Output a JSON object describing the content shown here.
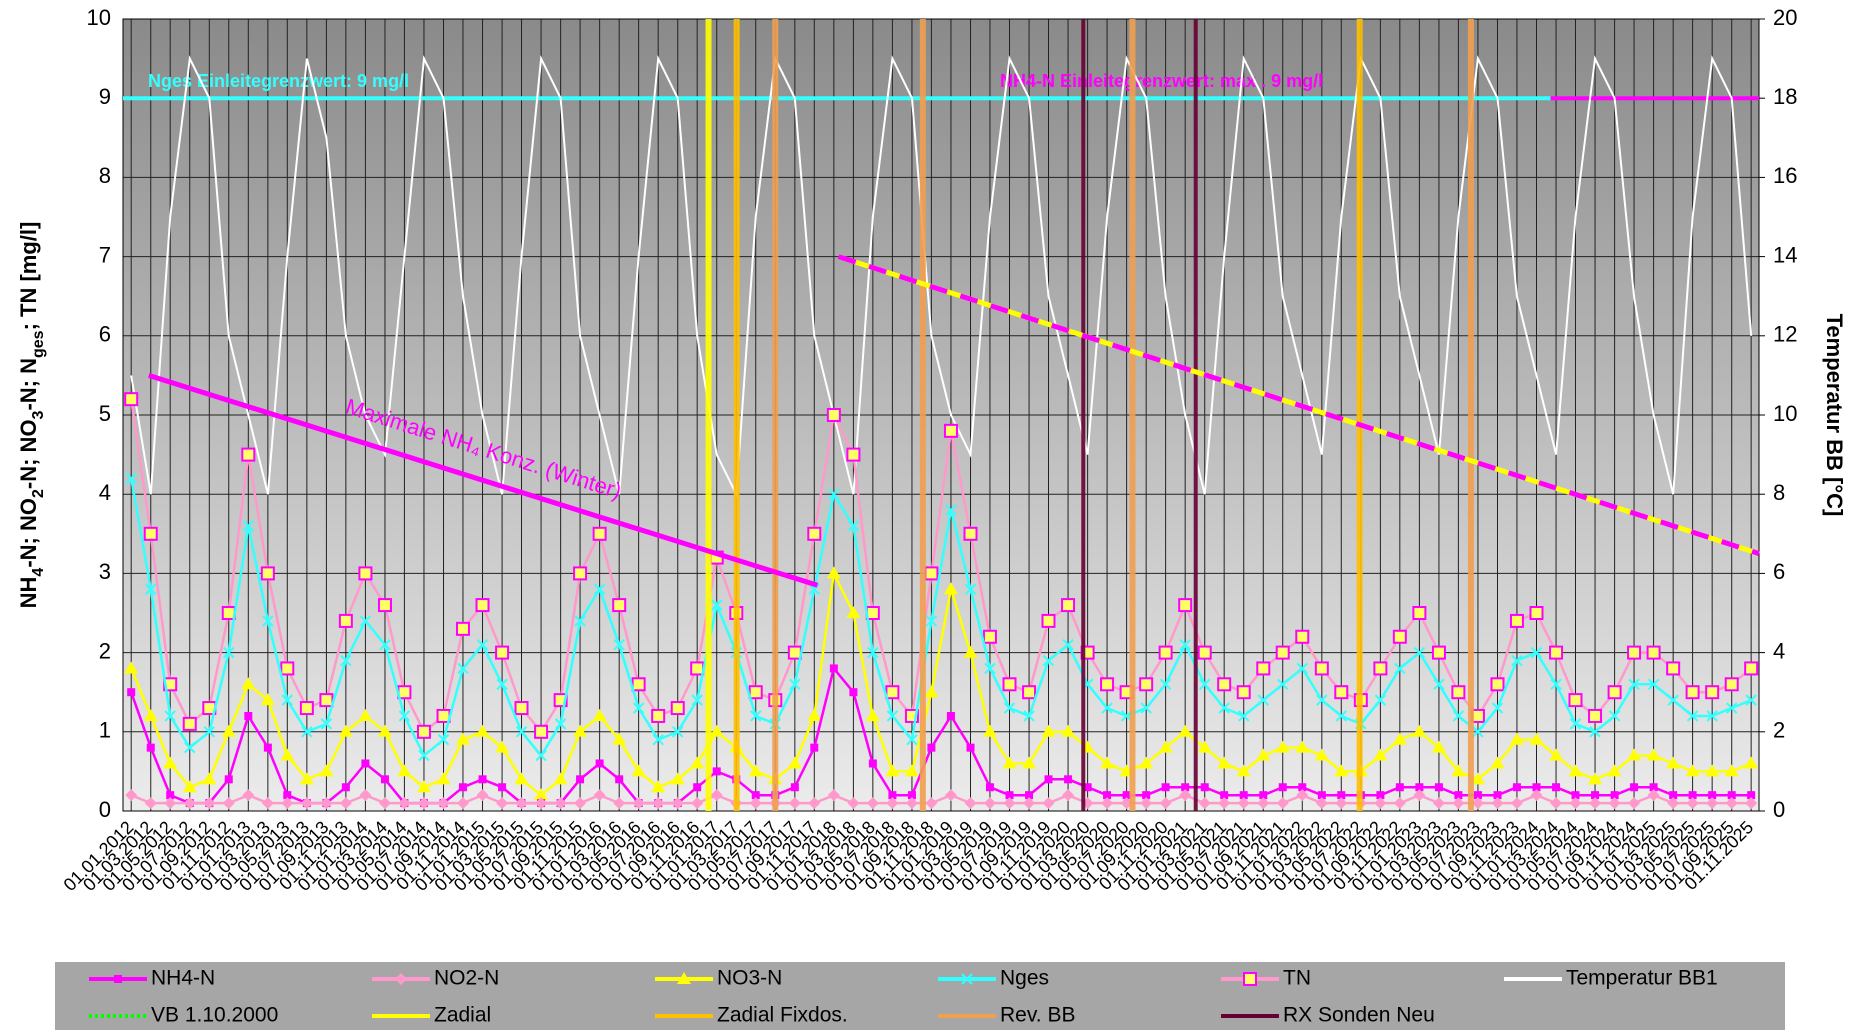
{
  "chart_data": {
    "type": "line",
    "y_label_parts": [
      "NH",
      "4",
      "-N; NO",
      "2",
      "-N; NO",
      "3",
      "-N; N",
      "ges",
      "; TN [mg/l]"
    ],
    "y2_label": "Temperatur BB [°C]",
    "xlim": [
      2011.93,
      2025.9
    ],
    "ylim": [
      0,
      10
    ],
    "yticks": [
      0,
      1,
      2,
      3,
      4,
      5,
      6,
      7,
      8,
      9,
      10
    ],
    "y2lim": [
      0,
      20
    ],
    "y2ticks": [
      0,
      2,
      4,
      6,
      8,
      10,
      12,
      14,
      16,
      18,
      20
    ],
    "grid": true,
    "xticks": [
      {
        "value": 2012,
        "label": "01.01.2012"
      },
      {
        "value": 2012.167,
        "label": "01.03.2012"
      },
      {
        "value": 2012.333,
        "label": "01.05.2012"
      },
      {
        "value": 2012.5,
        "label": "01.07.2012"
      },
      {
        "value": 2012.667,
        "label": "01.09.2012"
      },
      {
        "value": 2012.833,
        "label": "01.11.2012"
      },
      {
        "value": 2013,
        "label": "01.01.2013"
      },
      {
        "value": 2013.167,
        "label": "01.03.2013"
      },
      {
        "value": 2013.333,
        "label": "01.05.2013"
      },
      {
        "value": 2013.5,
        "label": "01.07.2013"
      },
      {
        "value": 2013.667,
        "label": "01.09.2013"
      },
      {
        "value": 2013.833,
        "label": "01.11.2013"
      },
      {
        "value": 2014,
        "label": "01.01.2014"
      },
      {
        "value": 2014.167,
        "label": "01.03.2014"
      },
      {
        "value": 2014.333,
        "label": "01.05.2014"
      },
      {
        "value": 2014.5,
        "label": "01.07.2014"
      },
      {
        "value": 2014.667,
        "label": "01.09.2014"
      },
      {
        "value": 2014.833,
        "label": "01.11.2014"
      },
      {
        "value": 2015,
        "label": "01.01.2015"
      },
      {
        "value": 2015.167,
        "label": "01.03.2015"
      },
      {
        "value": 2015.333,
        "label": "01.05.2015"
      },
      {
        "value": 2015.5,
        "label": "01.07.2015"
      },
      {
        "value": 2015.667,
        "label": "01.09.2015"
      },
      {
        "value": 2015.833,
        "label": "01.11.2015"
      },
      {
        "value": 2016,
        "label": "01.01.2016"
      },
      {
        "value": 2016.167,
        "label": "01.03.2016"
      },
      {
        "value": 2016.333,
        "label": "01.05.2016"
      },
      {
        "value": 2016.5,
        "label": "01.07.2016"
      },
      {
        "value": 2016.667,
        "label": "01.09.2016"
      },
      {
        "value": 2016.833,
        "label": "01.11.2016"
      },
      {
        "value": 2017,
        "label": "01.01.2017"
      },
      {
        "value": 2017.167,
        "label": "01.03.2017"
      },
      {
        "value": 2017.333,
        "label": "01.05.2017"
      },
      {
        "value": 2017.5,
        "label": "01.07.2017"
      },
      {
        "value": 2017.667,
        "label": "01.09.2017"
      },
      {
        "value": 2017.833,
        "label": "01.11.2017"
      },
      {
        "value": 2018,
        "label": "01.01.2018"
      },
      {
        "value": 2018.167,
        "label": "01.03.2018"
      },
      {
        "value": 2018.333,
        "label": "01.05.2018"
      },
      {
        "value": 2018.5,
        "label": "01.07.2018"
      },
      {
        "value": 2018.667,
        "label": "01.09.2018"
      },
      {
        "value": 2018.833,
        "label": "01.11.2018"
      },
      {
        "value": 2019,
        "label": "01.01.2019"
      },
      {
        "value": 2019.167,
        "label": "01.03.2019"
      },
      {
        "value": 2019.333,
        "label": "01.05.2019"
      },
      {
        "value": 2019.5,
        "label": "01.07.2019"
      },
      {
        "value": 2019.667,
        "label": "01.09.2019"
      },
      {
        "value": 2019.833,
        "label": "01.11.2019"
      },
      {
        "value": 2020,
        "label": "01.01.2020"
      },
      {
        "value": 2020.167,
        "label": "01.03.2020"
      },
      {
        "value": 2020.333,
        "label": "01.05.2020"
      },
      {
        "value": 2020.5,
        "label": "01.07.2020"
      },
      {
        "value": 2020.667,
        "label": "01.09.2020"
      },
      {
        "value": 2020.833,
        "label": "01.11.2020"
      },
      {
        "value": 2021,
        "label": "01.01.2021"
      },
      {
        "value": 2021.167,
        "label": "01.03.2021"
      },
      {
        "value": 2021.333,
        "label": "01.05.2021"
      },
      {
        "value": 2021.5,
        "label": "01.07.2021"
      },
      {
        "value": 2021.667,
        "label": "01.09.2021"
      },
      {
        "value": 2021.833,
        "label": "01.11.2021"
      },
      {
        "value": 2022,
        "label": "01.01.2022"
      },
      {
        "value": 2022.167,
        "label": "01.03.2022"
      },
      {
        "value": 2022.333,
        "label": "01.05.2022"
      },
      {
        "value": 2022.5,
        "label": "01.07.2022"
      },
      {
        "value": 2022.667,
        "label": "01.09.2022"
      },
      {
        "value": 2022.833,
        "label": "01.11.2022"
      },
      {
        "value": 2023,
        "label": "01.01.2023"
      },
      {
        "value": 2023.167,
        "label": "01.03.2023"
      },
      {
        "value": 2023.333,
        "label": "01.05.2023"
      },
      {
        "value": 2023.5,
        "label": "01.07.2023"
      },
      {
        "value": 2023.667,
        "label": "01.09.2023"
      },
      {
        "value": 2023.833,
        "label": "01.11.2023"
      },
      {
        "value": 2024,
        "label": "01.01.2024"
      },
      {
        "value": 2024.167,
        "label": "01.03.2024"
      },
      {
        "value": 2024.333,
        "label": "01.05.2024"
      },
      {
        "value": 2024.5,
        "label": "01.07.2024"
      },
      {
        "value": 2024.667,
        "label": "01.09.2024"
      },
      {
        "value": 2024.833,
        "label": "01.11.2024"
      },
      {
        "value": 2025,
        "label": "01.01.2025"
      },
      {
        "value": 2025.167,
        "label": "01.03.2025"
      },
      {
        "value": 2025.333,
        "label": "01.05.2025"
      },
      {
        "value": 2025.5,
        "label": "01.07.2025"
      },
      {
        "value": 2025.667,
        "label": "01.09.2025"
      },
      {
        "value": 2025.833,
        "label": "01.11.2025"
      }
    ],
    "series": [
      {
        "name": "NH4-N",
        "color": "#ff00ff",
        "marker": "square",
        "values": [
          1.5,
          0.8,
          0.2,
          0.1,
          0.1,
          0.4,
          1.2,
          0.8,
          0.2,
          0.1,
          0.1,
          0.3,
          0.6,
          0.4,
          0.1,
          0.1,
          0.1,
          0.3,
          0.4,
          0.3,
          0.1,
          0.1,
          0.1,
          0.4,
          0.6,
          0.4,
          0.1,
          0.1,
          0.1,
          0.3,
          0.5,
          0.4,
          0.2,
          0.2,
          0.3,
          0.8,
          1.8,
          1.5,
          0.6,
          0.2,
          0.2,
          0.8,
          1.2,
          0.8,
          0.3,
          0.2,
          0.2,
          0.4,
          0.4,
          0.3,
          0.2,
          0.2,
          0.2,
          0.3,
          0.3,
          0.3,
          0.2,
          0.2,
          0.2,
          0.3,
          0.3,
          0.2,
          0.2,
          0.2,
          0.2,
          0.3,
          0.3,
          0.3,
          0.2,
          0.2,
          0.2,
          0.3,
          0.3,
          0.3,
          0.2,
          0.2,
          0.2,
          0.3,
          0.3,
          0.2,
          0.2,
          0.2,
          0.2,
          0.2
        ]
      },
      {
        "name": "NO2-N",
        "color": "#ff99cc",
        "marker": "diamond",
        "values": [
          0.2,
          0.1,
          0.1,
          0.1,
          0.1,
          0.1,
          0.2,
          0.1,
          0.1,
          0.1,
          0.1,
          0.1,
          0.2,
          0.1,
          0.1,
          0.1,
          0.1,
          0.1,
          0.2,
          0.1,
          0.1,
          0.1,
          0.1,
          0.1,
          0.2,
          0.1,
          0.1,
          0.1,
          0.1,
          0.1,
          0.2,
          0.1,
          0.1,
          0.1,
          0.1,
          0.1,
          0.2,
          0.1,
          0.1,
          0.1,
          0.1,
          0.1,
          0.2,
          0.1,
          0.1,
          0.1,
          0.1,
          0.1,
          0.2,
          0.1,
          0.1,
          0.1,
          0.1,
          0.1,
          0.2,
          0.1,
          0.1,
          0.1,
          0.1,
          0.1,
          0.2,
          0.1,
          0.1,
          0.1,
          0.1,
          0.1,
          0.2,
          0.1,
          0.1,
          0.1,
          0.1,
          0.1,
          0.2,
          0.1,
          0.1,
          0.1,
          0.1,
          0.1,
          0.2,
          0.1,
          0.1,
          0.1,
          0.1,
          0.1
        ]
      },
      {
        "name": "NO3-N",
        "color": "#ffff00",
        "marker": "triangle",
        "values": [
          1.8,
          1.2,
          0.6,
          0.3,
          0.4,
          1.0,
          1.6,
          1.4,
          0.7,
          0.4,
          0.5,
          1.0,
          1.2,
          1.0,
          0.5,
          0.3,
          0.4,
          0.9,
          1.0,
          0.8,
          0.4,
          0.2,
          0.4,
          1.0,
          1.2,
          0.9,
          0.5,
          0.3,
          0.4,
          0.6,
          1.0,
          0.8,
          0.5,
          0.4,
          0.6,
          1.2,
          3.0,
          2.5,
          1.2,
          0.5,
          0.5,
          1.5,
          2.8,
          2.0,
          1.0,
          0.6,
          0.6,
          1.0,
          1.0,
          0.8,
          0.6,
          0.5,
          0.6,
          0.8,
          1.0,
          0.8,
          0.6,
          0.5,
          0.7,
          0.8,
          0.8,
          0.7,
          0.5,
          0.5,
          0.7,
          0.9,
          1.0,
          0.8,
          0.5,
          0.4,
          0.6,
          0.9,
          0.9,
          0.7,
          0.5,
          0.4,
          0.5,
          0.7,
          0.7,
          0.6,
          0.5,
          0.5,
          0.5,
          0.6
        ]
      },
      {
        "name": "Nges",
        "color": "#33ffff",
        "marker": "cross",
        "values": [
          4.2,
          2.8,
          1.2,
          0.8,
          1.0,
          2.0,
          3.6,
          2.4,
          1.4,
          1.0,
          1.1,
          1.9,
          2.4,
          2.1,
          1.2,
          0.7,
          0.9,
          1.8,
          2.1,
          1.6,
          1.0,
          0.7,
          1.1,
          2.4,
          2.8,
          2.1,
          1.3,
          0.9,
          1.0,
          1.4,
          2.6,
          2.0,
          1.2,
          1.1,
          1.6,
          2.8,
          4.0,
          3.6,
          2.0,
          1.2,
          0.9,
          2.4,
          3.8,
          2.8,
          1.8,
          1.3,
          1.2,
          1.9,
          2.1,
          1.6,
          1.3,
          1.2,
          1.3,
          1.6,
          2.1,
          1.6,
          1.3,
          1.2,
          1.4,
          1.6,
          1.8,
          1.4,
          1.2,
          1.1,
          1.4,
          1.8,
          2.0,
          1.6,
          1.2,
          1.0,
          1.3,
          1.9,
          2.0,
          1.6,
          1.1,
          1.0,
          1.2,
          1.6,
          1.6,
          1.4,
          1.2,
          1.2,
          1.3,
          1.4
        ]
      },
      {
        "name": "TN",
        "color": "#ff99cc",
        "marker": "box",
        "values": [
          5.2,
          3.5,
          1.6,
          1.1,
          1.3,
          2.5,
          4.5,
          3.0,
          1.8,
          1.3,
          1.4,
          2.4,
          3.0,
          2.6,
          1.5,
          1.0,
          1.2,
          2.3,
          2.6,
          2.0,
          1.3,
          1.0,
          1.4,
          3.0,
          3.5,
          2.6,
          1.6,
          1.2,
          1.3,
          1.8,
          3.2,
          2.5,
          1.5,
          1.4,
          2.0,
          3.5,
          5.0,
          4.5,
          2.5,
          1.5,
          1.2,
          3.0,
          4.8,
          3.5,
          2.2,
          1.6,
          1.5,
          2.4,
          2.6,
          2.0,
          1.6,
          1.5,
          1.6,
          2.0,
          2.6,
          2.0,
          1.6,
          1.5,
          1.8,
          2.0,
          2.2,
          1.8,
          1.5,
          1.4,
          1.8,
          2.2,
          2.5,
          2.0,
          1.5,
          1.2,
          1.6,
          2.4,
          2.5,
          2.0,
          1.4,
          1.2,
          1.5,
          2.0,
          2.0,
          1.8,
          1.5,
          1.5,
          1.6,
          1.8
        ]
      },
      {
        "name": "Temperatur BB1",
        "color": "#ffffff",
        "marker": "none",
        "axis": "y2",
        "values": [
          11,
          8,
          15,
          19,
          18,
          12,
          10,
          8,
          14,
          19,
          17,
          12,
          10,
          9,
          14,
          19,
          18,
          13,
          10,
          8,
          14,
          19,
          18,
          12,
          10,
          8,
          14,
          19,
          18,
          12,
          9,
          8,
          15,
          19,
          18,
          12,
          10,
          8,
          15,
          19,
          18,
          12,
          10,
          9,
          15,
          19,
          18,
          13,
          11,
          9,
          15,
          19,
          18,
          13,
          10,
          8,
          14,
          19,
          18,
          13,
          11,
          9,
          15,
          19,
          18,
          13,
          11,
          9,
          15,
          19,
          18,
          13,
          11,
          9,
          15,
          19,
          18,
          13,
          10,
          8,
          15,
          19,
          18,
          12
        ]
      }
    ],
    "events": [
      {
        "name": "VB 1.10.2000",
        "color": "#00ff00",
        "label_color": "#00ff00",
        "dash": "dotted",
        "x": []
      },
      {
        "name": "Zadial",
        "color": "#ffff00",
        "x": [
          2016.93
        ]
      },
      {
        "name": "Zadial Fixdos.",
        "color": "#ffc000",
        "x": [
          2017.17,
          2022.49
        ]
      },
      {
        "name": "Rev. BB",
        "color": "#f0a050",
        "x": [
          2017.5,
          2018.76,
          2020.55,
          2023.44
        ]
      },
      {
        "name": "RX Sonden Neu",
        "color": "#660033",
        "x": [
          2020.13,
          2021.09
        ]
      }
    ],
    "limit_lines": [
      {
        "label": "Nges Einleitegrenzwert: 9 mg/l",
        "color": "#33ffff",
        "value": 9,
        "x": [
          2011.93,
          2024.12
        ]
      },
      {
        "label": "NH4-N  Einleitegrenzwert: max . 9 mg/l",
        "color": "#ff00ff",
        "value": 9,
        "x": [
          2024.12,
          2025.9
        ]
      }
    ],
    "trend_lines": [
      {
        "label": "Maximale NH₄ Konz. (Winter)",
        "color": "#ff00ff",
        "x": [
          2012.15,
          2017.86
        ],
        "values": [
          5.5,
          2.85
        ]
      },
      {
        "color": "#ff00ff",
        "color2": "#ffff00",
        "x": [
          2018.04,
          2025.9
        ],
        "values": [
          7.0,
          3.25
        ]
      }
    ]
  }
}
